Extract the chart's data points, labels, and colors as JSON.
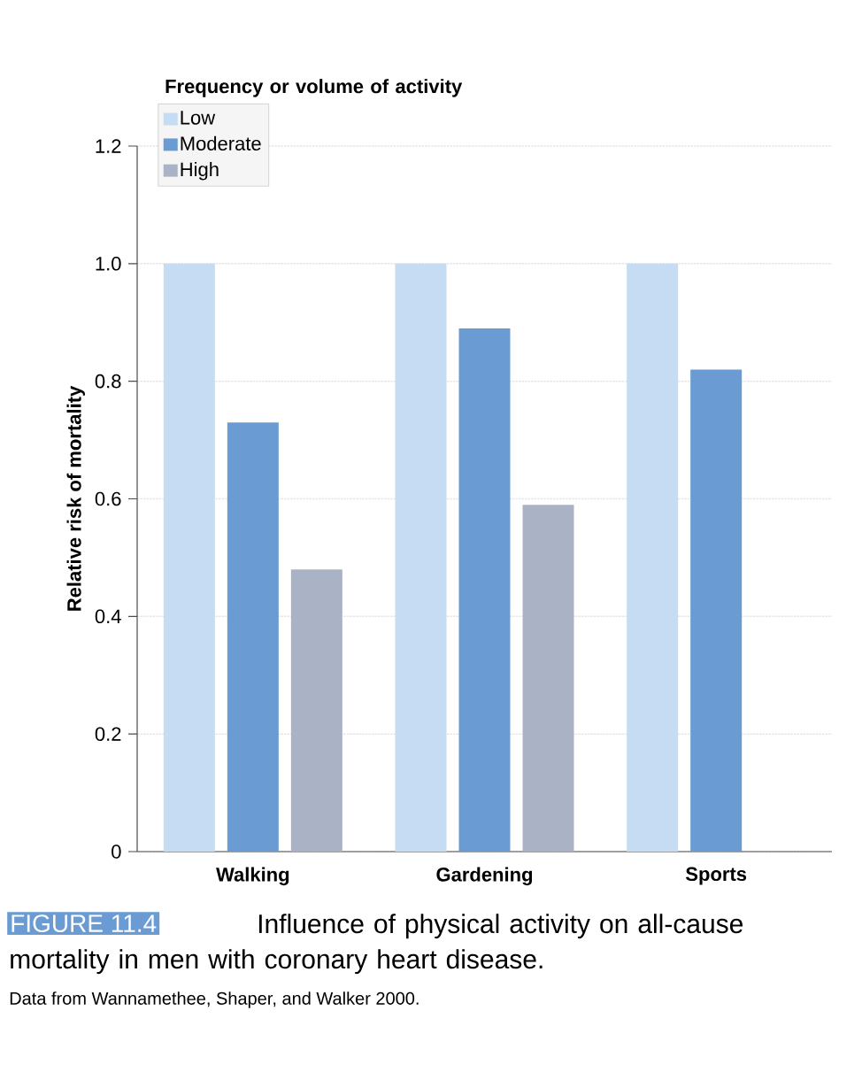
{
  "chart_data": {
    "type": "bar",
    "ylabel": "Relative risk of mortality",
    "legend_title": "Frequency or volume of activity",
    "categories": [
      "Walking",
      "Gardening",
      "Sports"
    ],
    "series": [
      {
        "name": "Low",
        "color": "#c5dcf2",
        "values": [
          1.0,
          1.0,
          1.0
        ]
      },
      {
        "name": "Moderate",
        "color": "#6a9bd3",
        "values": [
          0.73,
          0.89,
          0.82
        ]
      },
      {
        "name": "High",
        "color": "#aab3c6",
        "values": [
          0.48,
          0.59,
          null
        ]
      }
    ],
    "ylim": [
      0,
      1.2
    ],
    "yticks": [
      0,
      0.2,
      0.4,
      0.6,
      0.8,
      {
        "value": 1.0,
        "label": "1.0"
      },
      1.2
    ],
    "grid": "y",
    "legend": "top left",
    "annotations": [
      "FIGURE 11.4",
      "Influence of physical activity on all-cause mortality in men with coronary heart disease.",
      "Data from Wannamethee, Shaper, and Walker 2000."
    ]
  }
}
